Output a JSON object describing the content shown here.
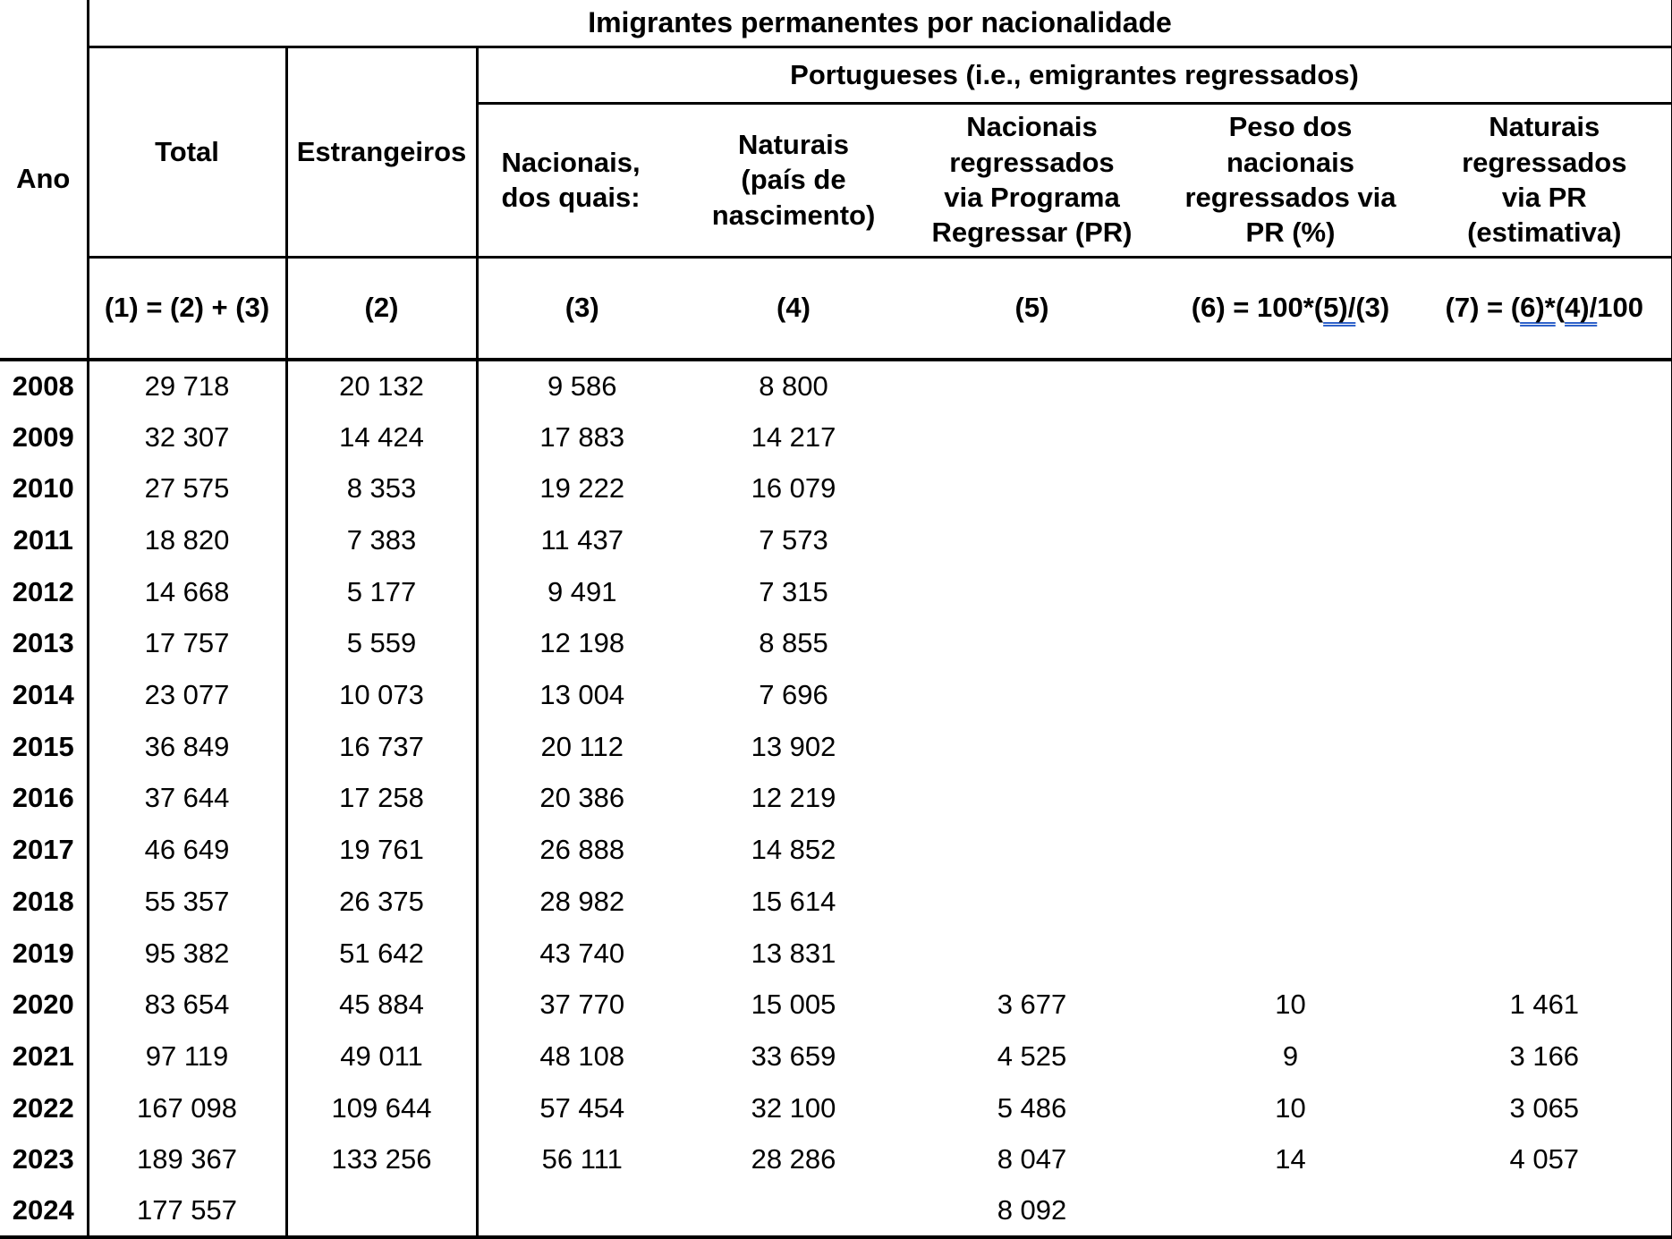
{
  "title": "Imigrantes permanentes por nacionalidade",
  "group_header": "Portugueses (i.e., emigrantes regressados)",
  "underline_color": "#2f62c9",
  "columns": {
    "ano": "Ano",
    "total": "Total",
    "estrangeiros": "Estrangeiros",
    "nacionais": "Nacionais,\ndos quais:",
    "naturais": "Naturais\n(país de\nnascimento)",
    "nacionais_regressados_pr": "Nacionais\nregressados\nvia Programa\nRegressar (PR)",
    "peso_pr": "Peso dos\nnacionais\nregressados via\nPR (%)",
    "naturais_regressados_pr": "Naturais\nregressados\nvia PR\n(estimativa)"
  },
  "formula_row": {
    "f1": "(1) = (2) + (3)",
    "f2": "(2)",
    "f3": "(3)",
    "f4": "(4)",
    "f5": "(5)",
    "f6": [
      {
        "t": "(6) = 100*("
      },
      {
        "t": "5)/",
        "u": true
      },
      {
        "t": "(3)"
      }
    ],
    "f7": [
      {
        "t": "(7) = ("
      },
      {
        "t": "6)*",
        "u": true
      },
      {
        "t": "("
      },
      {
        "t": "4)/",
        "u": true
      },
      {
        "t": "100"
      }
    ]
  },
  "rows": [
    {
      "year": "2008",
      "values": [
        "29 718",
        "20 132",
        "9 586",
        "8 800",
        "",
        "",
        ""
      ]
    },
    {
      "year": "2009",
      "values": [
        "32 307",
        "14 424",
        "17 883",
        "14 217",
        "",
        "",
        ""
      ]
    },
    {
      "year": "2010",
      "values": [
        "27 575",
        "8 353",
        "19 222",
        "16 079",
        "",
        "",
        ""
      ]
    },
    {
      "year": "2011",
      "values": [
        "18 820",
        "7 383",
        "11 437",
        "7 573",
        "",
        "",
        ""
      ]
    },
    {
      "year": "2012",
      "values": [
        "14 668",
        "5 177",
        "9 491",
        "7 315",
        "",
        "",
        ""
      ]
    },
    {
      "year": "2013",
      "values": [
        "17 757",
        "5 559",
        "12 198",
        "8 855",
        "",
        "",
        ""
      ]
    },
    {
      "year": "2014",
      "values": [
        "23 077",
        "10 073",
        "13 004",
        "7 696",
        "",
        "",
        ""
      ]
    },
    {
      "year": "2015",
      "values": [
        "36 849",
        "16 737",
        "20 112",
        "13 902",
        "",
        "",
        ""
      ]
    },
    {
      "year": "2016",
      "values": [
        "37 644",
        "17 258",
        "20 386",
        "12 219",
        "",
        "",
        ""
      ]
    },
    {
      "year": "2017",
      "values": [
        "46 649",
        "19 761",
        "26 888",
        "14 852",
        "",
        "",
        ""
      ]
    },
    {
      "year": "2018",
      "values": [
        "55 357",
        "26 375",
        "28 982",
        "15 614",
        "",
        "",
        ""
      ]
    },
    {
      "year": "2019",
      "values": [
        "95 382",
        "51 642",
        "43 740",
        "13 831",
        "",
        "",
        ""
      ]
    },
    {
      "year": "2020",
      "values": [
        "83 654",
        "45 884",
        "37 770",
        "15 005",
        "3 677",
        "10",
        "1 461"
      ]
    },
    {
      "year": "2021",
      "values": [
        "97 119",
        "49 011",
        "48 108",
        "33 659",
        "4 525",
        "9",
        "3 166"
      ]
    },
    {
      "year": "2022",
      "values": [
        "167 098",
        "109 644",
        "57 454",
        "32 100",
        "5 486",
        "10",
        "3 065"
      ]
    },
    {
      "year": "2023",
      "values": [
        "189 367",
        "133 256",
        "56 111",
        "28 286",
        "8 047",
        "14",
        "4 057"
      ]
    },
    {
      "year": "2024",
      "values": [
        "177 557",
        "",
        "",
        "",
        "8 092",
        "",
        ""
      ]
    }
  ]
}
